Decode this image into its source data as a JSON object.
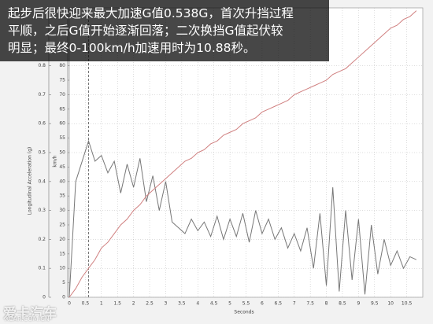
{
  "chart_data": {
    "type": "line",
    "caption": [
      "起步后很快迎来最大加速G值0.538G，首次升挡过程",
      "平顺，之后G值开始逐渐回落；二次换挡G值起伏较",
      "明显；最终0-100km/h加速用时为10.88秒。"
    ],
    "y_label": "Longitudinal Acceleration (g)",
    "y2_label": "km/h",
    "x_label": "Seconds",
    "watermark": "爱卡汽车",
    "watermark_url": "XCAR.COM.CN",
    "x": [
      0,
      0.2,
      0.4,
      0.6,
      0.8,
      1.0,
      1.2,
      1.4,
      1.6,
      1.8,
      2.0,
      2.2,
      2.4,
      2.6,
      2.8,
      3.0,
      3.2,
      3.4,
      3.6,
      3.8,
      4.0,
      4.2,
      4.4,
      4.6,
      4.8,
      5.0,
      5.2,
      5.4,
      5.6,
      5.8,
      6.0,
      6.2,
      6.4,
      6.6,
      6.8,
      7.0,
      7.2,
      7.4,
      7.6,
      7.8,
      8.0,
      8.2,
      8.4,
      8.6,
      8.8,
      9.0,
      9.2,
      9.4,
      9.6,
      9.8,
      10.0,
      10.2,
      10.4,
      10.6,
      10.8
    ],
    "series": [
      {
        "color": "#777777",
        "values": [
          0,
          0.4,
          0.47,
          0.54,
          0.47,
          0.49,
          0.43,
          0.47,
          0.36,
          0.46,
          0.38,
          0.48,
          0.33,
          0.42,
          0.3,
          0.4,
          0.26,
          0.24,
          0.22,
          0.27,
          0.23,
          0.26,
          0.21,
          0.28,
          0.2,
          0.27,
          0.21,
          0.29,
          0.19,
          0.3,
          0.22,
          0.27,
          0.2,
          0.24,
          0.17,
          0.22,
          0.16,
          0.24,
          0.1,
          0.29,
          0.04,
          0.38,
          0.02,
          0.3,
          0.06,
          0.27,
          0.01,
          0.25,
          0.08,
          0.2,
          0.11,
          0.16,
          0.1,
          0.14,
          0.13
        ]
      },
      {
        "color": "#d08080",
        "axis": "y2",
        "values": [
          0,
          3,
          7,
          10,
          13,
          17,
          19,
          22,
          25,
          27,
          30,
          32,
          35,
          37,
          39,
          41,
          43,
          45,
          47,
          48,
          50,
          51,
          53,
          54,
          56,
          57,
          58,
          60,
          61,
          62,
          64,
          65,
          66,
          67,
          68,
          70,
          71,
          72,
          73,
          74,
          75,
          77,
          78,
          79,
          81,
          83,
          85,
          87,
          89,
          91,
          93,
          94,
          96,
          97,
          99
        ]
      }
    ],
    "xlim": [
      0,
      11
    ],
    "xticks": [
      0,
      0.5,
      1,
      1.5,
      2,
      2.5,
      3,
      3.5,
      4,
      4.5,
      5,
      5.5,
      6,
      6.5,
      7,
      7.5,
      8,
      8.5,
      9,
      9.5,
      10,
      10.5
    ],
    "ylim": [
      0,
      1
    ],
    "yticks": [
      0,
      0.1,
      0.2,
      0.3,
      0.4,
      0.5,
      0.6,
      0.7,
      0.8
    ],
    "y2lim": [
      0,
      100
    ],
    "y2ticks": [
      0,
      5,
      10,
      15,
      20,
      25,
      30,
      35,
      40,
      45,
      50,
      55,
      60,
      65,
      70,
      75,
      80
    ],
    "grid": true
  }
}
